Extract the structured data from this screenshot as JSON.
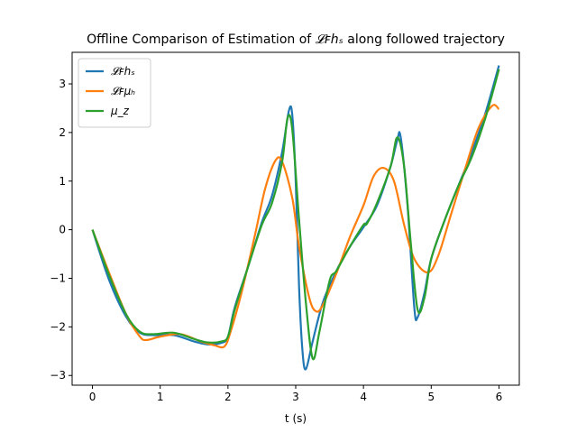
{
  "chart_data": {
    "type": "line",
    "title": "Offline Comparison of Estimation of 𝓛ꜰhₛ along followed trajectory",
    "xlabel": "t (s)",
    "ylabel": "",
    "xlim": [
      -0.3,
      6.3
    ],
    "ylim": [
      -3.2,
      3.65
    ],
    "xticks": [
      0,
      1,
      2,
      3,
      4,
      5,
      6
    ],
    "yticks": [
      -3,
      -2,
      -1,
      0,
      1,
      2,
      3
    ],
    "grid": false,
    "legend_position": "top-left",
    "series": [
      {
        "name": "𝓛ꜰhₛ",
        "color": "#1f77b4",
        "points": [
          [
            0,
            0
          ],
          [
            0.25,
            -1.05
          ],
          [
            0.5,
            -1.8
          ],
          [
            0.7,
            -2.12
          ],
          [
            0.9,
            -2.17
          ],
          [
            1.2,
            -2.17
          ],
          [
            1.5,
            -2.3
          ],
          [
            1.7,
            -2.36
          ],
          [
            1.9,
            -2.33
          ],
          [
            2.0,
            -2.2
          ],
          [
            2.1,
            -1.6
          ],
          [
            2.3,
            -0.75
          ],
          [
            2.5,
            0.15
          ],
          [
            2.65,
            0.7
          ],
          [
            2.8,
            1.6
          ],
          [
            2.9,
            2.45
          ],
          [
            2.95,
            2.35
          ],
          [
            3.0,
            1.0
          ],
          [
            3.05,
            -1.2
          ],
          [
            3.1,
            -2.5
          ],
          [
            3.15,
            -2.87
          ],
          [
            3.25,
            -2.3
          ],
          [
            3.4,
            -1.5
          ],
          [
            3.6,
            -0.85
          ],
          [
            3.8,
            -0.35
          ],
          [
            4.0,
            0.05
          ],
          [
            4.2,
            0.5
          ],
          [
            4.4,
            1.3
          ],
          [
            4.5,
            1.85
          ],
          [
            4.55,
            1.9
          ],
          [
            4.65,
            0.5
          ],
          [
            4.75,
            -1.6
          ],
          [
            4.8,
            -1.8
          ],
          [
            4.9,
            -1.3
          ],
          [
            5.0,
            -0.6
          ],
          [
            5.2,
            0.2
          ],
          [
            5.4,
            0.9
          ],
          [
            5.6,
            1.6
          ],
          [
            5.8,
            2.4
          ],
          [
            6.0,
            3.38
          ]
        ]
      },
      {
        "name": "𝓛ꜰμₕ",
        "color": "#ff7f0e",
        "points": [
          [
            0,
            0
          ],
          [
            0.25,
            -0.9
          ],
          [
            0.5,
            -1.75
          ],
          [
            0.7,
            -2.2
          ],
          [
            0.8,
            -2.27
          ],
          [
            1.0,
            -2.2
          ],
          [
            1.3,
            -2.15
          ],
          [
            1.6,
            -2.3
          ],
          [
            1.8,
            -2.38
          ],
          [
            1.95,
            -2.4
          ],
          [
            2.05,
            -2.05
          ],
          [
            2.2,
            -1.3
          ],
          [
            2.4,
            -0.1
          ],
          [
            2.55,
            0.85
          ],
          [
            2.7,
            1.42
          ],
          [
            2.8,
            1.4
          ],
          [
            2.95,
            0.65
          ],
          [
            3.05,
            -0.35
          ],
          [
            3.2,
            -1.4
          ],
          [
            3.3,
            -1.68
          ],
          [
            3.4,
            -1.55
          ],
          [
            3.6,
            -0.9
          ],
          [
            3.8,
            -0.15
          ],
          [
            4.0,
            0.5
          ],
          [
            4.15,
            1.1
          ],
          [
            4.3,
            1.27
          ],
          [
            4.45,
            1.0
          ],
          [
            4.6,
            0.1
          ],
          [
            4.75,
            -0.6
          ],
          [
            4.95,
            -0.88
          ],
          [
            5.1,
            -0.55
          ],
          [
            5.3,
            0.35
          ],
          [
            5.5,
            1.25
          ],
          [
            5.7,
            2.1
          ],
          [
            5.9,
            2.55
          ],
          [
            6.0,
            2.48
          ]
        ]
      },
      {
        "name": "μ_z",
        "color": "#2ca02c",
        "points": [
          [
            0,
            0
          ],
          [
            0.25,
            -0.95
          ],
          [
            0.5,
            -1.75
          ],
          [
            0.7,
            -2.1
          ],
          [
            0.9,
            -2.15
          ],
          [
            1.2,
            -2.12
          ],
          [
            1.5,
            -2.25
          ],
          [
            1.7,
            -2.32
          ],
          [
            1.9,
            -2.3
          ],
          [
            2.0,
            -2.2
          ],
          [
            2.1,
            -1.65
          ],
          [
            2.3,
            -0.75
          ],
          [
            2.5,
            0.1
          ],
          [
            2.65,
            0.55
          ],
          [
            2.8,
            1.4
          ],
          [
            2.88,
            2.3
          ],
          [
            2.95,
            2.05
          ],
          [
            3.05,
            0.2
          ],
          [
            3.15,
            -1.5
          ],
          [
            3.25,
            -2.65
          ],
          [
            3.35,
            -2.1
          ],
          [
            3.5,
            -1.05
          ],
          [
            3.6,
            -0.85
          ],
          [
            3.8,
            -0.35
          ],
          [
            4.0,
            0.1
          ],
          [
            4.05,
            0.12
          ],
          [
            4.2,
            0.55
          ],
          [
            4.4,
            1.3
          ],
          [
            4.5,
            1.9
          ],
          [
            4.6,
            1.3
          ],
          [
            4.7,
            -0.3
          ],
          [
            4.8,
            -1.65
          ],
          [
            4.9,
            -1.4
          ],
          [
            5.0,
            -0.6
          ],
          [
            5.2,
            0.2
          ],
          [
            5.4,
            0.9
          ],
          [
            5.6,
            1.5
          ],
          [
            5.8,
            2.3
          ],
          [
            6.0,
            3.3
          ]
        ]
      }
    ]
  }
}
